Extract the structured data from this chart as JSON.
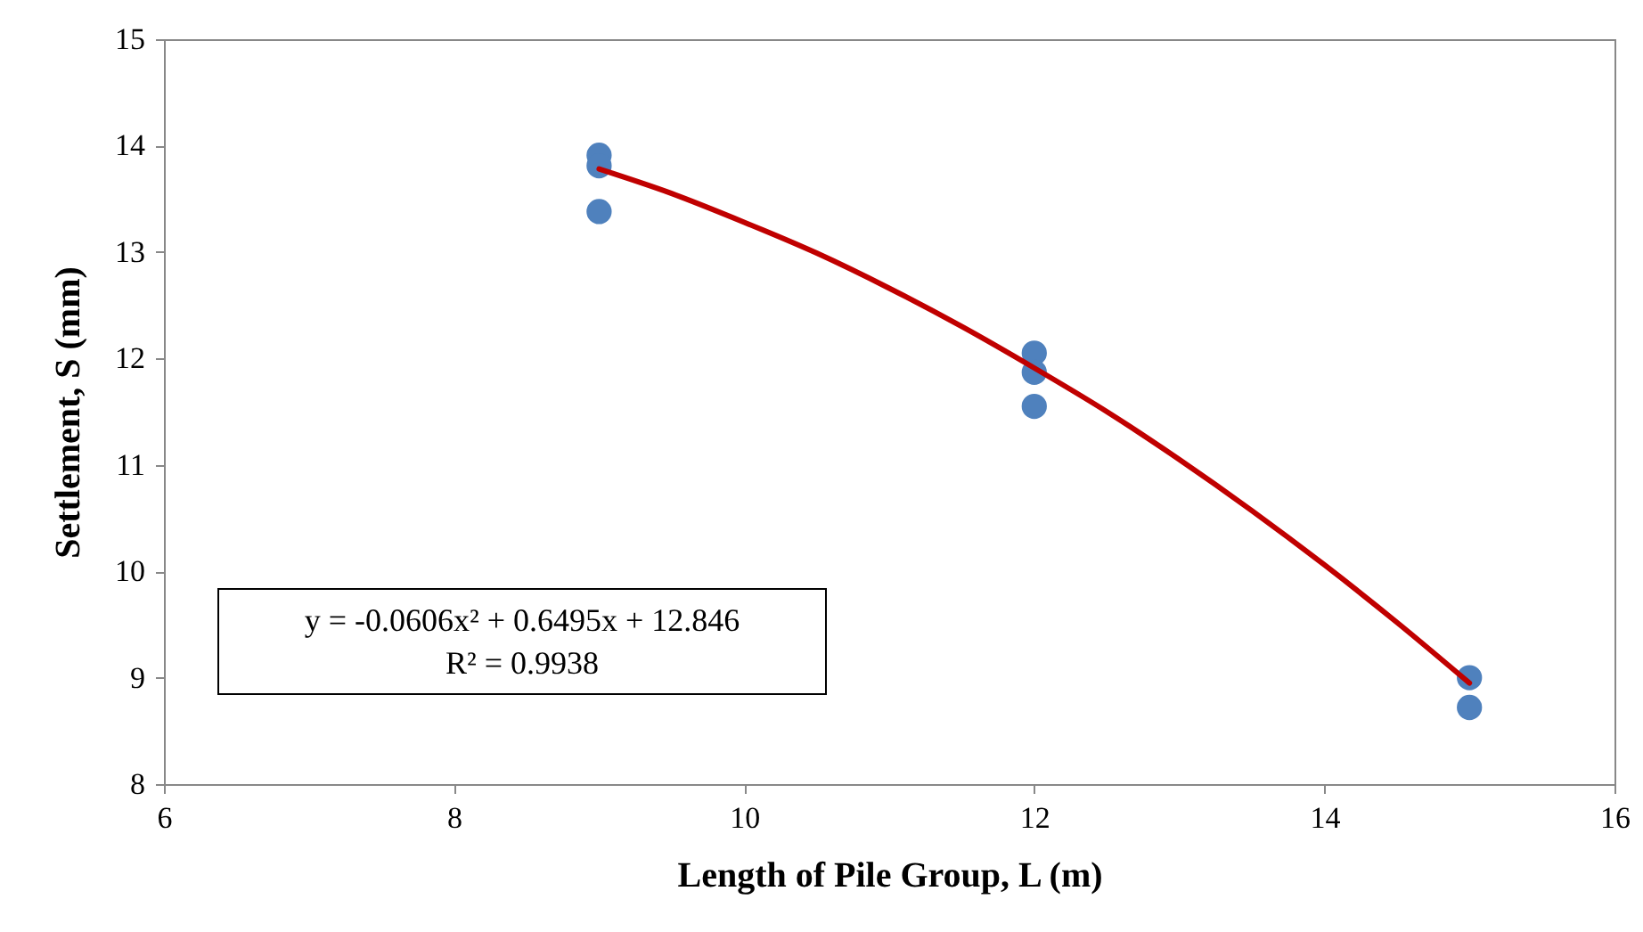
{
  "chart_data": {
    "type": "scatter",
    "xlabel": "Length of Pile Group, L (m)",
    "ylabel": "Settlement, S (mm)",
    "x": [
      9,
      9,
      9,
      12,
      12,
      12,
      15,
      15
    ],
    "series": [
      {
        "color": "#4f81bd",
        "values": [
          13.91,
          13.81,
          13.38,
          12.05,
          11.87,
          11.55,
          9,
          8.72
        ],
        "marker": "circle"
      },
      {
        "type": "line",
        "color": "#c00000",
        "x": [
          9,
          9.5,
          10,
          10.5,
          11,
          11.5,
          12,
          12.5,
          13,
          13.5,
          14,
          14.5,
          15
        ],
        "values": [
          13.78,
          13.55,
          13.28,
          12.99,
          12.66,
          12.3,
          11.91,
          11.5,
          11.05,
          10.57,
          10.06,
          9.52,
          8.95
        ]
      }
    ],
    "annotations": [
      "y = -0.0606x² + 0.6495x + 12.846",
      "R² = 0.9938"
    ],
    "xlim": [
      6,
      16
    ],
    "xticks": [
      6,
      8,
      10,
      12,
      14,
      16
    ],
    "ylim": [
      8,
      15
    ],
    "yticks": [
      8,
      9,
      10,
      11,
      12,
      13,
      14,
      15
    ],
    "grid": false
  }
}
